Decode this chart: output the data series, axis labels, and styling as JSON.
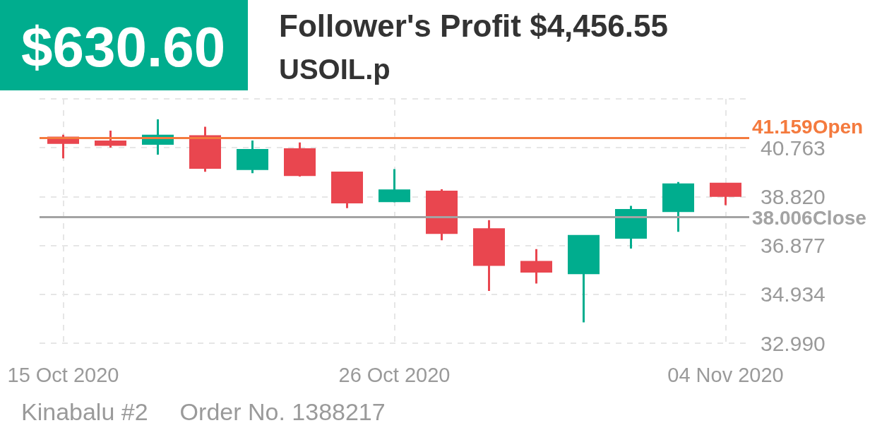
{
  "chart_data": {
    "type": "candlestick",
    "title": "Follower's Profit $4,456.55",
    "subtitle": "USOIL.p",
    "annotations": [
      "$630.60",
      "Kinabalu #2",
      "Order No. 1388217"
    ],
    "categories": [
      "15 Oct 2020",
      null,
      null,
      null,
      null,
      null,
      null,
      "26 Oct 2020",
      null,
      null,
      null,
      null,
      null,
      null,
      "04 Nov 2020"
    ],
    "ohlc": [
      [
        41.16,
        41.28,
        40.34,
        40.96
      ],
      [
        41.01,
        41.44,
        40.77,
        40.88
      ],
      [
        40.92,
        41.89,
        40.49,
        41.24
      ],
      [
        41.22,
        41.6,
        39.81,
        39.97
      ],
      [
        39.92,
        41.05,
        39.75,
        40.67
      ],
      [
        40.7,
        40.97,
        39.62,
        39.68
      ],
      [
        39.77,
        39.78,
        38.36,
        38.59
      ],
      [
        38.64,
        39.91,
        38.59,
        39.06
      ],
      [
        39.01,
        39.11,
        37.08,
        37.38
      ],
      [
        37.52,
        37.88,
        35.07,
        36.11
      ],
      [
        36.22,
        36.73,
        35.36,
        35.84
      ],
      [
        35.78,
        37.29,
        33.82,
        37.25
      ],
      [
        37.19,
        38.45,
        36.75,
        38.28
      ],
      [
        38.25,
        39.4,
        37.42,
        39.3
      ],
      [
        39.33,
        39.33,
        38.48,
        38.85
      ]
    ],
    "colors": [
      "#e9464f",
      "#e9464f",
      "#00ad8e",
      "#e9464f",
      "#00ad8e",
      "#e9464f",
      "#e9464f",
      "#00ad8e",
      "#e9464f",
      "#e9464f",
      "#e9464f",
      "#00ad8e",
      "#00ad8e",
      "#00ad8e",
      "#e9464f"
    ],
    "ylim": [
      32.99,
      42.706
    ],
    "yticks": [
      {
        "value": 32.99,
        "label": "32.990"
      },
      34.934,
      36.877,
      {
        "value": 38.82,
        "label": "38.820"
      },
      40.763,
      {
        "value": 42.706,
        "label": null
      }
    ],
    "ref_lines": [
      {
        "axis": "y",
        "value": 41.159,
        "label": "41.159Open",
        "color": "#f47a3e"
      },
      {
        "axis": "y",
        "value": 38.006,
        "label": "38.006Close",
        "color": "#a3a3a3"
      }
    ],
    "grid": true
  }
}
